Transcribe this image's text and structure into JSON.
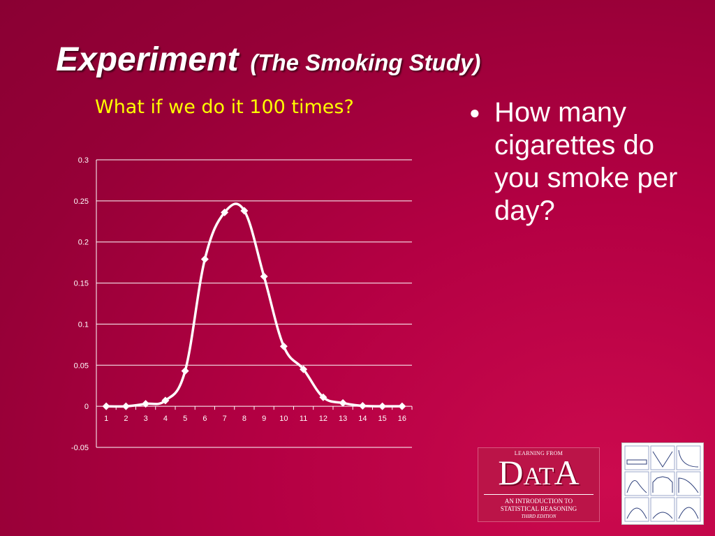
{
  "slide": {
    "title": "Experiment",
    "title_sub": "(The Smoking Study)",
    "bullet_marker": "●",
    "bullet_text": "How many cigarettes do you smoke per day?"
  },
  "logo": {
    "top": "LEARNING FROM",
    "word_1": "D",
    "word_2": "A",
    "word_3": "T",
    "word_4": "A",
    "line1": "AN INTRODUCTION TO",
    "line2": "STATISTICAL REASONING",
    "line3": "THIRD EDITION"
  },
  "colors": {
    "background": "#a8003f",
    "title": "#ffffff",
    "chart_title": "#ffff00",
    "series_line": "#ffffff"
  },
  "chart_data": {
    "type": "line",
    "title": "What if we do it 100 times?",
    "xlabel": "",
    "ylabel": "",
    "categories": [
      "1",
      "2",
      "3",
      "4",
      "5",
      "6",
      "7",
      "8",
      "9",
      "10",
      "11",
      "12",
      "13",
      "14",
      "15",
      "16"
    ],
    "series": [
      {
        "values": [
          0,
          0,
          0.003,
          0.007,
          0.043,
          0.179,
          0.236,
          0.238,
          0.158,
          0.073,
          0.045,
          0.011,
          0.004,
          0.0005,
          0,
          0
        ]
      }
    ],
    "ylim": [
      -0.05,
      0.3
    ],
    "yticks": [
      -0.05,
      0,
      0.05,
      0.1,
      0.15,
      0.2,
      0.25,
      0.3
    ],
    "ytick_labels": [
      "-0.05",
      "0",
      "0.05",
      "0.1",
      "0.15",
      "0.2",
      "0.25",
      "0.3"
    ],
    "grid": true,
    "legend": "none",
    "smooth": true,
    "marker": "diamond"
  }
}
